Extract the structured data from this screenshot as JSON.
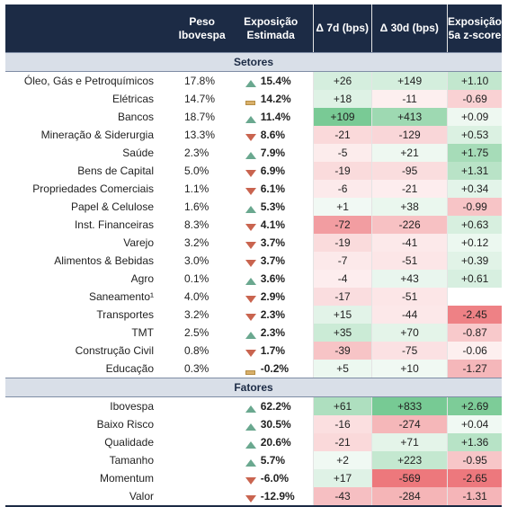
{
  "headers": {
    "peso": "Peso\nIbovespa",
    "exposicao": "Exposição\nEstimada",
    "d7": "Δ 7d (bps)",
    "d30": "Δ 30d (bps)",
    "z": "Exposição\n5a z-score"
  },
  "sections": {
    "setores": "Setores",
    "fatores": "Fatores"
  },
  "setores": [
    {
      "name": "Óleo, Gás e Petroquímicos",
      "peso": "17.8%",
      "exp": "15.4%",
      "icon": "up",
      "d7": "+26",
      "d7v": 26,
      "d30": "+149",
      "d30v": 149,
      "z": "+1.10",
      "zv": 1.1
    },
    {
      "name": "Elétricas",
      "peso": "14.7%",
      "exp": "14.2%",
      "icon": "flat",
      "d7": "+18",
      "d7v": 18,
      "d30": "-11",
      "d30v": -11,
      "z": "-0.69",
      "zv": -0.69
    },
    {
      "name": "Bancos",
      "peso": "18.7%",
      "exp": "11.4%",
      "icon": "up",
      "d7": "+109",
      "d7v": 109,
      "d30": "+413",
      "d30v": 413,
      "z": "+0.09",
      "zv": 0.09
    },
    {
      "name": "Mineração & Siderurgia",
      "peso": "13.3%",
      "exp": "8.6%",
      "icon": "down",
      "d7": "-21",
      "d7v": -21,
      "d30": "-129",
      "d30v": -129,
      "z": "+0.53",
      "zv": 0.53
    },
    {
      "name": "Saúde",
      "peso": "2.3%",
      "exp": "7.9%",
      "icon": "up",
      "d7": "-5",
      "d7v": -5,
      "d30": "+21",
      "d30v": 21,
      "z": "+1.75",
      "zv": 1.75
    },
    {
      "name": "Bens de Capital",
      "peso": "5.0%",
      "exp": "6.9%",
      "icon": "down",
      "d7": "-19",
      "d7v": -19,
      "d30": "-95",
      "d30v": -95,
      "z": "+1.31",
      "zv": 1.31
    },
    {
      "name": "Propriedades Comerciais",
      "peso": "1.1%",
      "exp": "6.1%",
      "icon": "down",
      "d7": "-6",
      "d7v": -6,
      "d30": "-21",
      "d30v": -21,
      "z": "+0.34",
      "zv": 0.34
    },
    {
      "name": "Papel & Celulose",
      "peso": "1.6%",
      "exp": "5.3%",
      "icon": "up",
      "d7": "+1",
      "d7v": 1,
      "d30": "+38",
      "d30v": 38,
      "z": "-0.99",
      "zv": -0.99
    },
    {
      "name": "Inst. Financeiras",
      "peso": "8.3%",
      "exp": "4.1%",
      "icon": "down",
      "d7": "-72",
      "d7v": -72,
      "d30": "-226",
      "d30v": -226,
      "z": "+0.63",
      "zv": 0.63
    },
    {
      "name": "Varejo",
      "peso": "3.2%",
      "exp": "3.7%",
      "icon": "down",
      "d7": "-19",
      "d7v": -19,
      "d30": "-41",
      "d30v": -41,
      "z": "+0.12",
      "zv": 0.12
    },
    {
      "name": "Alimentos & Bebidas",
      "peso": "3.0%",
      "exp": "3.7%",
      "icon": "down",
      "d7": "-7",
      "d7v": -7,
      "d30": "-51",
      "d30v": -51,
      "z": "+0.39",
      "zv": 0.39
    },
    {
      "name": "Agro",
      "peso": "0.1%",
      "exp": "3.6%",
      "icon": "up",
      "d7": "-4",
      "d7v": -4,
      "d30": "+43",
      "d30v": 43,
      "z": "+0.61",
      "zv": 0.61
    },
    {
      "name": "Saneamento¹",
      "peso": "4.0%",
      "exp": "2.9%",
      "icon": "down",
      "d7": "-17",
      "d7v": -17,
      "d30": "-51",
      "d30v": -51,
      "z": "",
      "zv": 0
    },
    {
      "name": "Transportes",
      "peso": "3.2%",
      "exp": "2.3%",
      "icon": "down",
      "d7": "+15",
      "d7v": 15,
      "d30": "-44",
      "d30v": -44,
      "z": "-2.45",
      "zv": -2.45
    },
    {
      "name": "TMT",
      "peso": "2.5%",
      "exp": "2.3%",
      "icon": "up",
      "d7": "+35",
      "d7v": 35,
      "d30": "+70",
      "d30v": 70,
      "z": "-0.87",
      "zv": -0.87
    },
    {
      "name": "Construção Civil",
      "peso": "0.8%",
      "exp": "1.7%",
      "icon": "down",
      "d7": "-39",
      "d7v": -39,
      "d30": "-75",
      "d30v": -75,
      "z": "-0.06",
      "zv": -0.06
    },
    {
      "name": "Educação",
      "peso": "0.3%",
      "exp": "-0.2%",
      "icon": "flat",
      "d7": "+5",
      "d7v": 5,
      "d30": "+10",
      "d30v": 10,
      "z": "-1.27",
      "zv": -1.27
    }
  ],
  "fatores": [
    {
      "name": "Ibovespa",
      "peso": "",
      "exp": "62.2%",
      "icon": "up",
      "d7": "+61",
      "d7v": 61,
      "d30": "+833",
      "d30v": 833,
      "z": "+2.69",
      "zv": 2.69
    },
    {
      "name": "Baixo Risco",
      "peso": "",
      "exp": "30.5%",
      "icon": "up",
      "d7": "-16",
      "d7v": -16,
      "d30": "-274",
      "d30v": -274,
      "z": "+0.04",
      "zv": 0.04
    },
    {
      "name": "Qualidade",
      "peso": "",
      "exp": "20.6%",
      "icon": "up",
      "d7": "-21",
      "d7v": -21,
      "d30": "+71",
      "d30v": 71,
      "z": "+1.36",
      "zv": 1.36
    },
    {
      "name": "Tamanho",
      "peso": "",
      "exp": "5.7%",
      "icon": "up",
      "d7": "+2",
      "d7v": 2,
      "d30": "+223",
      "d30v": 223,
      "z": "-0.95",
      "zv": -0.95
    },
    {
      "name": "Momentum",
      "peso": "",
      "exp": "-6.0%",
      "icon": "down",
      "d7": "+17",
      "d7v": 17,
      "d30": "-569",
      "d30v": -569,
      "z": "-2.65",
      "zv": -2.65
    },
    {
      "name": "Valor",
      "peso": "",
      "exp": "-12.9%",
      "icon": "down",
      "d7": "-43",
      "d7v": -43,
      "d30": "-284",
      "d30v": -284,
      "z": "-1.31",
      "zv": -1.31
    }
  ],
  "colors": {
    "header_bg": "#1c2b45",
    "section_bg": "#d9dfe8",
    "positive": "#5cbf7e",
    "negative": "#e8545a",
    "up_icon": "#6aa88f",
    "down_icon": "#c9644f",
    "flat_icon": "#d9b06a"
  }
}
